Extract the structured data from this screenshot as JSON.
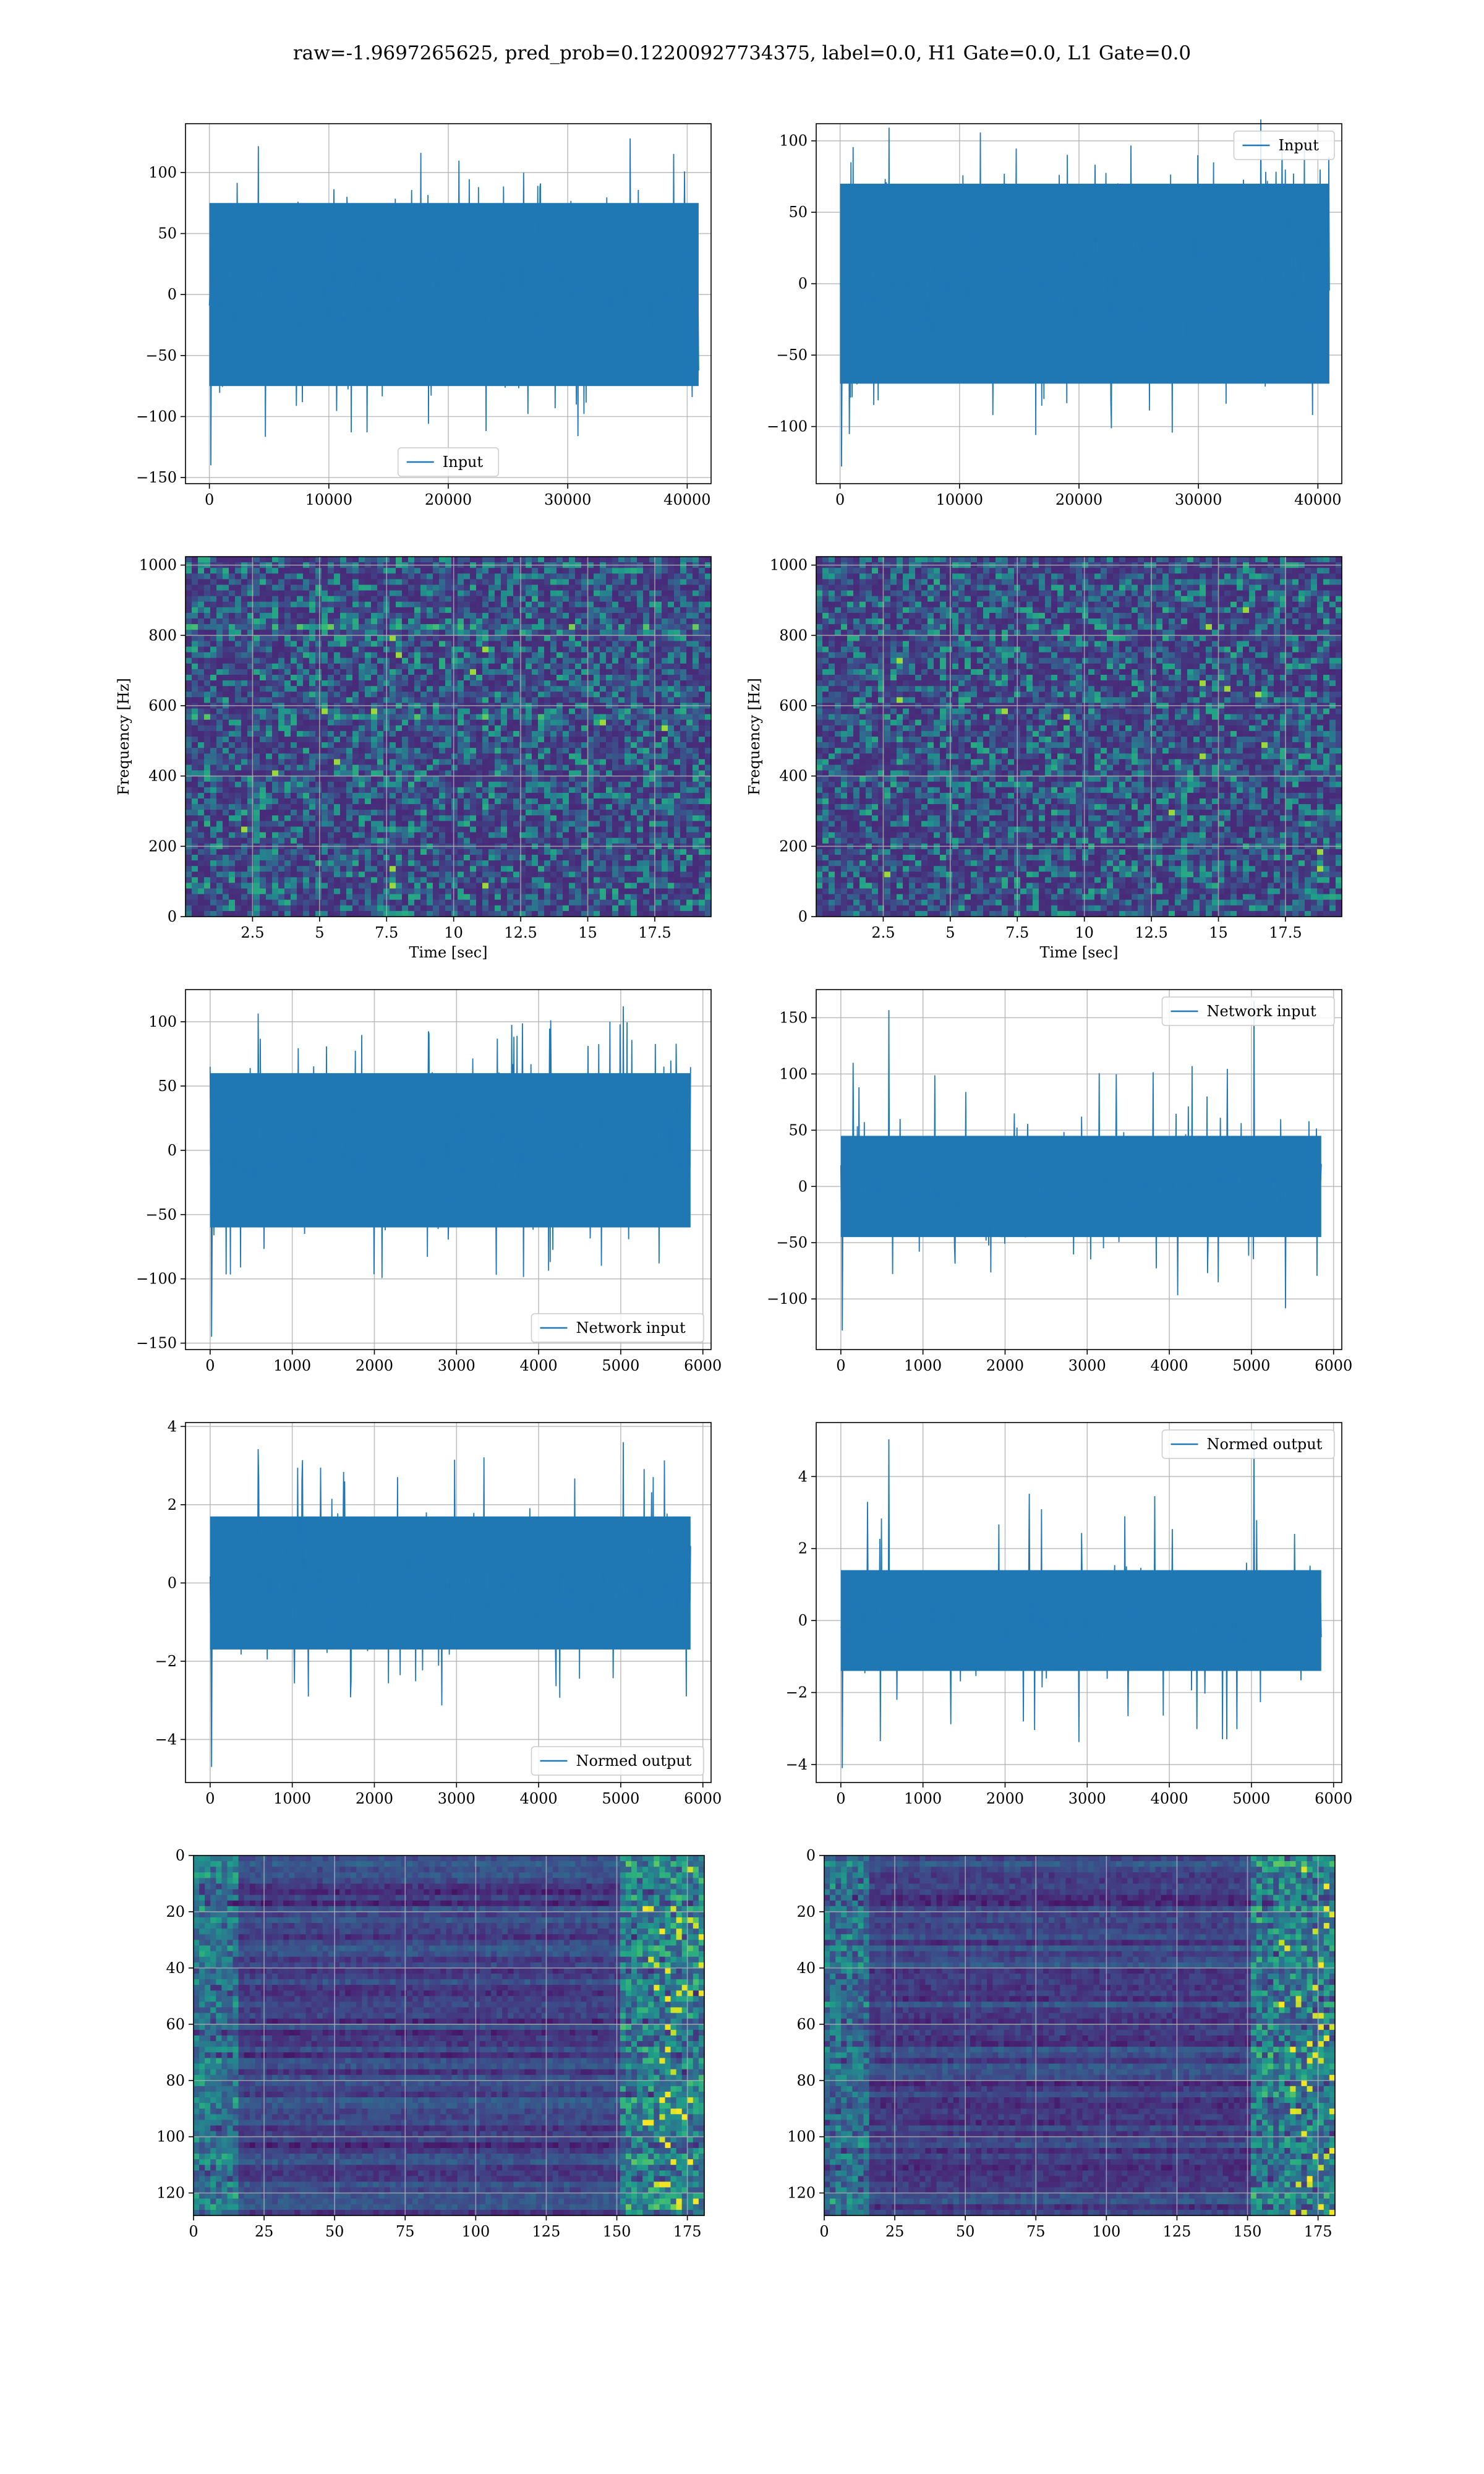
{
  "figure": {
    "title": "raw=-1.9697265625, pred_prob=0.12200927734375, label=0.0, H1 Gate=0.0, L1 Gate=0.0"
  },
  "chart_data": [
    {
      "id": "input-h1",
      "type": "line",
      "panel": "row1-left",
      "series": [
        {
          "name": "Input",
          "color": "#1f77b4"
        }
      ],
      "xlim": [
        -2000,
        42000
      ],
      "ylim": [
        -155,
        140
      ],
      "xticks": [
        0,
        10000,
        20000,
        30000,
        40000
      ],
      "yticks": [
        -150,
        -100,
        -50,
        0,
        50,
        100
      ],
      "xdata_range": [
        0,
        40960
      ],
      "envelope": {
        "core": 75,
        "max": 128,
        "min": -140
      },
      "legend": "lower center",
      "grid": true
    },
    {
      "id": "input-l1",
      "type": "line",
      "panel": "row1-right",
      "series": [
        {
          "name": "Input",
          "color": "#1f77b4"
        }
      ],
      "xlim": [
        -2000,
        42000
      ],
      "ylim": [
        -140,
        112
      ],
      "xticks": [
        0,
        10000,
        20000,
        30000,
        40000
      ],
      "yticks": [
        -100,
        -50,
        0,
        50,
        100
      ],
      "xdata_range": [
        0,
        40960
      ],
      "envelope": {
        "core": 70,
        "max": 115,
        "min": -128
      },
      "legend": "upper right",
      "grid": true
    },
    {
      "id": "spectrogram-h1",
      "type": "heatmap",
      "panel": "row2-left",
      "xlabel": "Time [sec]",
      "ylabel": "Frequency [Hz]",
      "xlim": [
        0,
        19.6
      ],
      "ylim": [
        0,
        1024
      ],
      "xticks": [
        2.5,
        5.0,
        7.5,
        10.0,
        12.5,
        15.0,
        17.5
      ],
      "yticks": [
        0,
        200,
        400,
        600,
        800,
        1000
      ],
      "bright_lines_hz": [
        830,
        560
      ],
      "colormap": "viridis",
      "grid": true
    },
    {
      "id": "spectrogram-l1",
      "type": "heatmap",
      "panel": "row2-right",
      "xlabel": "Time [sec]",
      "ylabel": "Frequency [Hz]",
      "xlim": [
        0,
        19.6
      ],
      "ylim": [
        0,
        1024
      ],
      "xticks": [
        2.5,
        5.0,
        7.5,
        10.0,
        12.5,
        15.0,
        17.5
      ],
      "yticks": [
        0,
        200,
        400,
        600,
        800,
        1000
      ],
      "bright_lines_hz": [],
      "colormap": "viridis",
      "grid": true
    },
    {
      "id": "network-input-h1",
      "type": "line",
      "panel": "row3-left",
      "series": [
        {
          "name": "Network input",
          "color": "#1f77b4"
        }
      ],
      "xlim": [
        -300,
        6100
      ],
      "ylim": [
        -155,
        125
      ],
      "xticks": [
        0,
        1000,
        2000,
        3000,
        4000,
        5000,
        6000
      ],
      "yticks": [
        -150,
        -100,
        -50,
        0,
        50,
        100
      ],
      "xdata_range": [
        0,
        5850
      ],
      "envelope": {
        "core": 60,
        "max": 112,
        "min": -145
      },
      "legend": "lower right",
      "grid": true
    },
    {
      "id": "network-input-l1",
      "type": "line",
      "panel": "row3-right",
      "series": [
        {
          "name": "Network input",
          "color": "#1f77b4"
        }
      ],
      "xlim": [
        -300,
        6100
      ],
      "ylim": [
        -145,
        175
      ],
      "xticks": [
        0,
        1000,
        2000,
        3000,
        4000,
        5000,
        6000
      ],
      "yticks": [
        -100,
        -50,
        0,
        50,
        100,
        150
      ],
      "xdata_range": [
        0,
        5850
      ],
      "envelope": {
        "core": 45,
        "max": 165,
        "min": -128
      },
      "legend": "upper right",
      "grid": true
    },
    {
      "id": "normed-output-h1",
      "type": "line",
      "panel": "row4-left",
      "series": [
        {
          "name": "Normed output",
          "color": "#1f77b4"
        }
      ],
      "xlim": [
        -300,
        6100
      ],
      "ylim": [
        -5.1,
        4.1
      ],
      "xticks": [
        0,
        1000,
        2000,
        3000,
        4000,
        5000,
        6000
      ],
      "yticks": [
        -4,
        -2,
        0,
        2,
        4
      ],
      "xdata_range": [
        0,
        5850
      ],
      "envelope": {
        "core": 1.7,
        "max": 3.6,
        "min": -4.7
      },
      "legend": "lower right",
      "grid": true
    },
    {
      "id": "normed-output-l1",
      "type": "line",
      "panel": "row4-right",
      "series": [
        {
          "name": "Normed output",
          "color": "#1f77b4"
        }
      ],
      "xlim": [
        -300,
        6100
      ],
      "ylim": [
        -4.5,
        5.5
      ],
      "xticks": [
        0,
        1000,
        2000,
        3000,
        4000,
        5000,
        6000
      ],
      "yticks": [
        -4,
        -2,
        0,
        2,
        4
      ],
      "xdata_range": [
        0,
        5850
      ],
      "envelope": {
        "core": 1.4,
        "max": 5.3,
        "min": -4.1
      },
      "legend": "upper right",
      "grid": true
    },
    {
      "id": "feature-map-h1",
      "type": "heatmap",
      "panel": "row5-left",
      "xlim": [
        0,
        181
      ],
      "ylim": [
        128,
        0
      ],
      "xticks": [
        0,
        25,
        50,
        75,
        100,
        125,
        150,
        175
      ],
      "yticks": [
        0,
        20,
        40,
        60,
        80,
        100,
        120
      ],
      "colormap": "viridis",
      "grid": true
    },
    {
      "id": "feature-map-l1",
      "type": "heatmap",
      "panel": "row5-right",
      "xlim": [
        0,
        181
      ],
      "ylim": [
        128,
        0
      ],
      "xticks": [
        0,
        25,
        50,
        75,
        100,
        125,
        150,
        175
      ],
      "yticks": [
        0,
        20,
        40,
        60,
        80,
        100,
        120
      ],
      "colormap": "viridis",
      "grid": true
    }
  ]
}
